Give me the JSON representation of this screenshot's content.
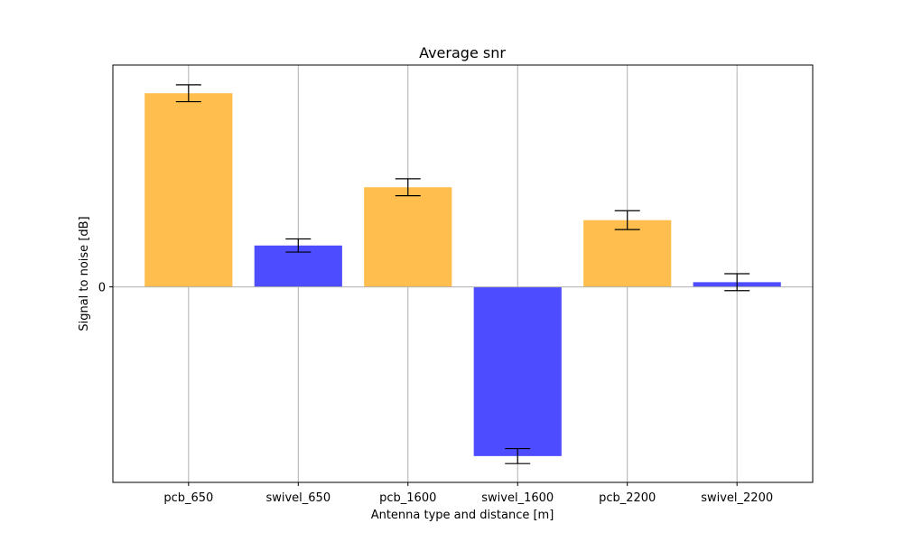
{
  "chart_data": {
    "type": "bar",
    "title": "Average snr",
    "xlabel": "Antenna type and distance [m]",
    "ylabel": "Signal to noise [dB]",
    "categories": [
      "pcb_650",
      "swivel_650",
      "pcb_1600",
      "swivel_1600",
      "pcb_2200",
      "swivel_2200"
    ],
    "values": [
      10.3,
      2.2,
      5.3,
      -9.0,
      3.55,
      0.25
    ],
    "errors": [
      0.45,
      0.35,
      0.45,
      0.4,
      0.5,
      0.45
    ],
    "bar_colors": [
      "#ffbe4d",
      "#4d4dff",
      "#ffbe4d",
      "#4d4dff",
      "#ffbe4d",
      "#4d4dff"
    ],
    "yticks": [
      0
    ],
    "ylim": [
      -10.4,
      11.8
    ],
    "grid": "x",
    "legend": "none"
  }
}
